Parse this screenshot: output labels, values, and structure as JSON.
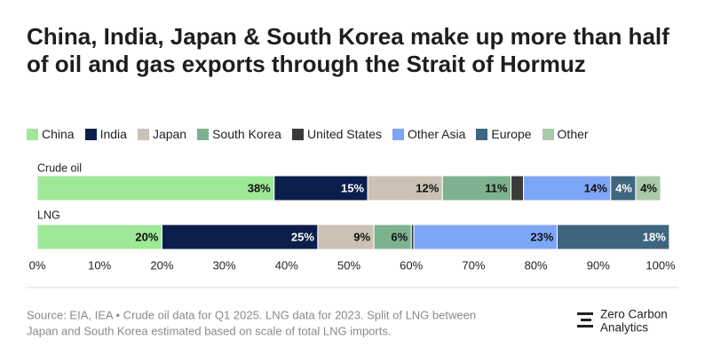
{
  "chart_data": {
    "type": "bar",
    "orientation": "horizontal",
    "stacked": true,
    "title": "China, India, Japan & South Korea make up more than half of oil and gas exports through the Strait of Hormuz",
    "categories": [
      "Crude oil",
      "LNG"
    ],
    "series": [
      {
        "name": "China",
        "color": "#9ee898",
        "values": [
          38,
          20
        ],
        "value_labels": [
          "38%",
          "20%"
        ]
      },
      {
        "name": "India",
        "color": "#0c1e4b",
        "values": [
          15,
          25
        ],
        "value_labels": [
          "15%",
          "25%"
        ]
      },
      {
        "name": "Japan",
        "color": "#cbc1b4",
        "values": [
          12,
          9
        ],
        "value_labels": [
          "12%",
          "9%"
        ]
      },
      {
        "name": "South Korea",
        "color": "#7db28f",
        "values": [
          11,
          6
        ],
        "value_labels": [
          "11%",
          "6%"
        ]
      },
      {
        "name": "United States",
        "color": "#3b3b3b",
        "values": [
          2,
          0.4
        ]
      },
      {
        "name": "Other Asia",
        "color": "#7ea6f6",
        "values": [
          14,
          23
        ],
        "value_labels": [
          "14%",
          "23%"
        ]
      },
      {
        "name": "Europe",
        "color": "#3f6680",
        "values": [
          4,
          18
        ],
        "value_labels": [
          "4%",
          "18%"
        ]
      },
      {
        "name": "Other",
        "color": "#a9caa9",
        "values": [
          4,
          null
        ],
        "value_labels": [
          "4%",
          null
        ]
      }
    ],
    "xlim": [
      0,
      100
    ],
    "xticks": [
      {
        "value": 0,
        "label": "0%"
      },
      {
        "value": 10,
        "label": "10%"
      },
      {
        "value": 20,
        "label": "20%"
      },
      {
        "value": 30,
        "label": "30%"
      },
      {
        "value": 40,
        "label": "40%"
      },
      {
        "value": 50,
        "label": "50%"
      },
      {
        "value": 60,
        "label": "60%"
      },
      {
        "value": 70,
        "label": "70%"
      },
      {
        "value": 80,
        "label": "80%"
      },
      {
        "value": 90,
        "label": "90%"
      },
      {
        "value": 100,
        "label": "100%"
      }
    ],
    "source": [
      "Source: EIA, IEA • Crude oil data for Q1 2025. LNG data for 2023. Split of LNG between",
      "Japan and South Korea estimated based on scale of total LNG imports."
    ],
    "logo": [
      "Zero Carbon",
      "Analytics"
    ]
  }
}
